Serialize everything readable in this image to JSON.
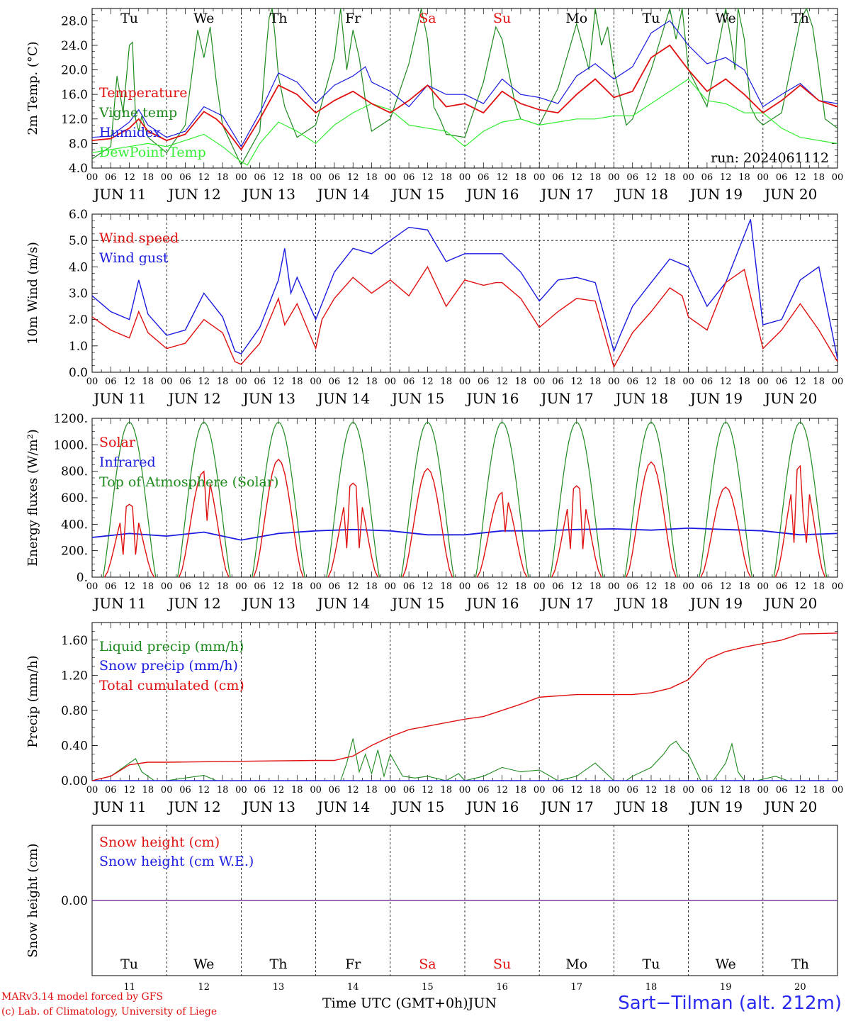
{
  "x_axis": {
    "hour_ticks": [
      "00",
      "06",
      "12",
      "18"
    ],
    "last_tick": "00",
    "dates": [
      "JUN 11",
      "JUN 12",
      "JUN 13",
      "JUN 14",
      "JUN 15",
      "JUN 16",
      "JUN 17",
      "JUN 18",
      "JUN 19",
      "JUN 20"
    ],
    "weekdays": [
      "Tu",
      "We",
      "Th",
      "Fr",
      "Sa",
      "Su",
      "Mo",
      "Tu",
      "We",
      "Th"
    ],
    "weekday_colors": [
      "#000000",
      "#000000",
      "#000000",
      "#000000",
      "#e01010",
      "#e01010",
      "#000000",
      "#000000",
      "#000000",
      "#000000"
    ],
    "day_numbers": [
      "11",
      "12",
      "13",
      "14",
      "15",
      "16",
      "17",
      "18",
      "19",
      "20"
    ],
    "label": "Time UTC (GMT+0h)",
    "month": "JUN"
  },
  "run_label": "run: 2024061112",
  "footer": {
    "model": "MARv3.14 model forced by GFS",
    "credit": "(c) Lab. of Climatology, University of Liege",
    "station": "Sart−Tilman (alt. 212m)"
  },
  "chart_data": [
    {
      "type": "line",
      "ylabel": "2m Temp. (°C)",
      "ylim": [
        4.0,
        30.0
      ],
      "yticks": [
        "4.0",
        "8.0",
        "12.0",
        "16.0",
        "20.0",
        "24.0",
        "28.0"
      ],
      "x_unit": "hours since JUN 11 00 UTC",
      "series": [
        {
          "name": "Temperature",
          "color": "#e01010",
          "x": [
            0,
            6,
            12,
            15,
            18,
            24,
            30,
            36,
            40,
            42,
            48,
            54,
            60,
            66,
            72,
            78,
            84,
            90,
            96,
            102,
            108,
            114,
            120,
            126,
            132,
            138,
            144,
            150,
            156,
            162,
            168,
            174,
            180,
            186,
            192,
            198,
            204,
            210,
            216,
            222,
            228,
            234,
            240
          ],
          "y": [
            8.5,
            8.8,
            10.5,
            12.0,
            10.0,
            8.5,
            9.5,
            13.2,
            12.0,
            11.0,
            7.0,
            12.0,
            17.5,
            16.0,
            13.0,
            15.0,
            16.5,
            14.5,
            13.0,
            15.0,
            17.5,
            14.0,
            14.5,
            13.0,
            16.5,
            14.5,
            13.5,
            13.0,
            16.0,
            18.5,
            15.5,
            16.5,
            22.0,
            24.0,
            20.0,
            16.5,
            18.5,
            16.0,
            13.0,
            15.0,
            17.5,
            15.0,
            14.0
          ]
        },
        {
          "name": "Vigne temp",
          "color": "#1e8a1e",
          "x": [
            0,
            6,
            8,
            10,
            12,
            13,
            14,
            15,
            16,
            18,
            24,
            30,
            34,
            36,
            38,
            40,
            42,
            48,
            54,
            56,
            57,
            58,
            59,
            60,
            62,
            66,
            72,
            78,
            80,
            82,
            84,
            86,
            88,
            90,
            96,
            102,
            106,
            108,
            110,
            112,
            114,
            120,
            126,
            130,
            132,
            134,
            136,
            138,
            144,
            150,
            156,
            160,
            162,
            164,
            166,
            168,
            172,
            174,
            180,
            186,
            188,
            190,
            192,
            198,
            204,
            206,
            207,
            208,
            210,
            212,
            214,
            216,
            222,
            228,
            230,
            232,
            234,
            236,
            240
          ],
          "y": [
            5.5,
            7.5,
            19.0,
            13.0,
            24.0,
            24.5,
            12.0,
            10.0,
            12.5,
            9.0,
            6.5,
            11.0,
            26.5,
            22.0,
            27.0,
            18.0,
            11.0,
            4.5,
            10.0,
            23.0,
            28.5,
            30.0,
            25.0,
            19.0,
            14.0,
            9.0,
            11.0,
            22.0,
            30.0,
            20.0,
            26.5,
            22.0,
            15.0,
            10.0,
            12.0,
            21.0,
            30.0,
            25.0,
            14.0,
            12.0,
            9.5,
            9.0,
            18.0,
            27.0,
            25.0,
            20.0,
            15.0,
            12.0,
            11.0,
            17.0,
            27.5,
            20.0,
            30.0,
            24.0,
            27.0,
            20.0,
            11.0,
            12.0,
            20.0,
            30.0,
            25.0,
            30.0,
            20.0,
            14.0,
            30.0,
            24.0,
            20.0,
            30.0,
            25.0,
            14.0,
            12.0,
            11.0,
            13.0,
            28.0,
            30.0,
            27.0,
            20.0,
            12.0,
            10.5
          ]
        },
        {
          "name": "Humidex",
          "color": "#1a1ae0",
          "x": [
            0,
            6,
            12,
            15,
            18,
            24,
            30,
            36,
            42,
            48,
            54,
            60,
            66,
            72,
            78,
            84,
            88,
            90,
            96,
            102,
            108,
            114,
            120,
            126,
            132,
            138,
            144,
            150,
            156,
            162,
            168,
            174,
            180,
            186,
            192,
            198,
            204,
            210,
            216,
            222,
            228,
            234,
            240
          ],
          "y": [
            9.0,
            9.2,
            11.5,
            13.5,
            11.0,
            9.0,
            10.0,
            14.0,
            12.5,
            7.5,
            13.0,
            19.5,
            18.0,
            14.5,
            17.5,
            19.0,
            20.5,
            18.0,
            16.5,
            14.0,
            17.5,
            16.0,
            16.0,
            14.5,
            18.5,
            16.0,
            15.5,
            14.5,
            19.0,
            21.0,
            18.5,
            20.5,
            26.0,
            28.0,
            24.0,
            21.0,
            22.0,
            20.0,
            14.0,
            16.0,
            17.8,
            15.0,
            14.5
          ]
        },
        {
          "name": "DewPoint Temp",
          "color": "#33ee33",
          "x": [
            0,
            6,
            12,
            18,
            24,
            30,
            36,
            42,
            48,
            50,
            54,
            60,
            66,
            72,
            78,
            84,
            90,
            96,
            102,
            108,
            114,
            120,
            126,
            132,
            138,
            144,
            150,
            156,
            162,
            168,
            174,
            180,
            186,
            192,
            198,
            204,
            210,
            216,
            222,
            228,
            234,
            240
          ],
          "y": [
            6.5,
            7.0,
            7.5,
            8.0,
            7.5,
            8.5,
            9.5,
            7.5,
            5.0,
            4.5,
            8.0,
            11.5,
            10.0,
            8.0,
            11.0,
            13.0,
            14.5,
            13.5,
            11.0,
            10.5,
            10.0,
            7.5,
            10.0,
            11.5,
            12.0,
            11.0,
            11.5,
            12.0,
            12.0,
            12.5,
            12.5,
            14.5,
            16.5,
            18.5,
            15.0,
            14.5,
            13.0,
            13.0,
            10.5,
            9.0,
            8.5,
            8.0
          ]
        }
      ]
    },
    {
      "type": "line",
      "ylabel": "10m Wind (m/s)",
      "ylim": [
        0.0,
        6.0
      ],
      "yticks": [
        "0.0",
        "1.0",
        "2.0",
        "3.0",
        "4.0",
        "5.0",
        "6.0"
      ],
      "reference_line": 5.0,
      "x_unit": "hours since JUN 11 00 UTC",
      "series": [
        {
          "name": "Wind speed",
          "color": "#e01010",
          "x": [
            0,
            6,
            12,
            15,
            18,
            24,
            30,
            36,
            42,
            46,
            48,
            54,
            60,
            62,
            66,
            72,
            74,
            78,
            84,
            90,
            96,
            102,
            108,
            114,
            120,
            126,
            130,
            132,
            138,
            144,
            150,
            156,
            162,
            168,
            174,
            180,
            186,
            190,
            192,
            198,
            204,
            210,
            216,
            222,
            228,
            234,
            240
          ],
          "y": [
            2.1,
            1.6,
            1.3,
            2.3,
            1.5,
            0.9,
            1.1,
            2.0,
            1.5,
            0.4,
            0.3,
            1.1,
            2.8,
            1.8,
            2.6,
            0.9,
            2.0,
            2.8,
            3.6,
            3.0,
            3.5,
            2.9,
            4.0,
            2.5,
            3.5,
            3.3,
            3.4,
            3.4,
            2.8,
            1.7,
            2.3,
            2.8,
            2.7,
            0.2,
            1.5,
            2.3,
            3.2,
            2.9,
            2.1,
            1.6,
            3.4,
            3.9,
            0.9,
            1.6,
            2.6,
            1.6,
            0.4
          ]
        },
        {
          "name": "Wind gust",
          "color": "#1a1ae0",
          "x": [
            0,
            6,
            12,
            15,
            18,
            24,
            30,
            36,
            42,
            46,
            48,
            54,
            60,
            62,
            64,
            66,
            72,
            78,
            84,
            90,
            96,
            102,
            108,
            114,
            120,
            126,
            132,
            138,
            144,
            150,
            156,
            162,
            168,
            170,
            174,
            180,
            186,
            192,
            198,
            204,
            210,
            212,
            216,
            222,
            228,
            234,
            240
          ],
          "y": [
            2.9,
            2.3,
            2.0,
            3.5,
            2.2,
            1.4,
            1.6,
            3.0,
            2.1,
            0.8,
            0.7,
            1.7,
            3.5,
            4.7,
            3.0,
            3.6,
            2.0,
            3.8,
            4.7,
            4.5,
            5.0,
            5.5,
            5.4,
            4.2,
            4.5,
            4.5,
            4.5,
            3.8,
            2.7,
            3.5,
            3.6,
            3.4,
            0.8,
            1.4,
            2.5,
            3.4,
            4.3,
            4.0,
            2.5,
            3.4,
            5.2,
            5.8,
            1.8,
            2.0,
            3.5,
            4.0,
            0.5
          ]
        }
      ]
    },
    {
      "type": "line",
      "ylabel": "Energy fluxes (W/m²)",
      "ylim": [
        0,
        1200
      ],
      "yticks": [
        "0.",
        "200.",
        "400.",
        "600.",
        "800.",
        "1000.",
        "1200."
      ],
      "x_unit": "hours since JUN 11 00 UTC",
      "series": [
        {
          "name": "Solar",
          "color": "#e01010",
          "daily_peak_hour": 12,
          "daily_peaks": [
            550,
            800,
            890,
            710,
            820,
            640,
            690,
            870,
            680,
            840
          ]
        },
        {
          "name": "Infrared",
          "color": "#1a1ae0",
          "x": [
            0,
            12,
            24,
            36,
            48,
            60,
            72,
            84,
            96,
            108,
            120,
            132,
            144,
            156,
            168,
            180,
            192,
            204,
            216,
            228,
            240
          ],
          "y": [
            300,
            330,
            310,
            340,
            280,
            330,
            350,
            360,
            350,
            320,
            320,
            350,
            350,
            360,
            365,
            355,
            370,
            360,
            350,
            320,
            330
          ]
        },
        {
          "name": "Top of Atmosphere (Solar)",
          "color": "#1e8a1e",
          "daily_peak": 1170,
          "sunrise_hour": 3.5,
          "sunset_hour": 20.5
        }
      ]
    },
    {
      "type": "line",
      "ylabel": "Precip (mm/h)",
      "ylim": [
        0.0,
        1.8
      ],
      "yticks": [
        "0.00",
        "0.40",
        "0.80",
        "1.20",
        "1.60"
      ],
      "x_unit": "hours since JUN 11 00 UTC",
      "series": [
        {
          "name": "Liquid precip (mm/h)",
          "color": "#1e8a1e",
          "x": [
            0,
            6,
            8,
            12,
            14,
            16,
            18,
            20,
            24,
            36,
            40,
            48,
            80,
            82,
            84,
            86,
            88,
            90,
            92,
            94,
            96,
            100,
            104,
            108,
            114,
            118,
            120,
            126,
            132,
            138,
            144,
            150,
            156,
            162,
            168,
            172,
            174,
            180,
            184,
            186,
            188,
            190,
            192,
            194,
            196,
            200,
            204,
            206,
            208,
            210,
            214,
            220,
            224,
            230,
            240
          ],
          "y": [
            0.0,
            0.05,
            0.1,
            0.2,
            0.25,
            0.1,
            0.05,
            0.0,
            0.0,
            0.06,
            0.0,
            0.0,
            0.0,
            0.2,
            0.48,
            0.1,
            0.3,
            0.08,
            0.35,
            0.05,
            0.3,
            0.05,
            0.03,
            0.05,
            0.0,
            0.08,
            0.0,
            0.05,
            0.15,
            0.1,
            0.12,
            0.0,
            0.05,
            0.2,
            0.0,
            0.0,
            0.05,
            0.15,
            0.3,
            0.4,
            0.45,
            0.35,
            0.3,
            0.15,
            0.0,
            0.0,
            0.2,
            0.42,
            0.1,
            0.0,
            0.0,
            0.05,
            0.0,
            0.0,
            0.0
          ]
        },
        {
          "name": "Snow precip (mm/h)",
          "color": "#1a1ae0",
          "x": [
            0,
            240
          ],
          "y": [
            0.0,
            0.0
          ]
        },
        {
          "name": "Total cumulated (cm)",
          "color": "#e01010",
          "x": [
            0,
            6,
            12,
            18,
            24,
            48,
            72,
            78,
            84,
            90,
            96,
            102,
            108,
            114,
            120,
            126,
            132,
            138,
            144,
            156,
            168,
            174,
            180,
            186,
            192,
            198,
            204,
            210,
            216,
            222,
            228,
            240
          ],
          "y": [
            0.0,
            0.05,
            0.18,
            0.21,
            0.21,
            0.22,
            0.23,
            0.23,
            0.28,
            0.4,
            0.5,
            0.58,
            0.62,
            0.66,
            0.7,
            0.73,
            0.8,
            0.87,
            0.95,
            0.98,
            0.98,
            0.98,
            1.0,
            1.05,
            1.15,
            1.38,
            1.47,
            1.52,
            1.56,
            1.6,
            1.67,
            1.68
          ]
        }
      ]
    },
    {
      "type": "line",
      "ylabel": "Snow height (cm)",
      "ylim": [
        -1.0,
        1.0
      ],
      "yticks": [
        "0.00"
      ],
      "x_unit": "hours since JUN 11 00 UTC",
      "series": [
        {
          "name": "Snow height (cm)",
          "color": "#e01010",
          "x": [
            0,
            240
          ],
          "y": [
            0.0,
            0.0
          ]
        },
        {
          "name": "Snow height (cm W.E.)",
          "color": "#1a1ae0",
          "x": [
            0,
            240
          ],
          "y": [
            0.0,
            0.0
          ]
        }
      ]
    }
  ]
}
